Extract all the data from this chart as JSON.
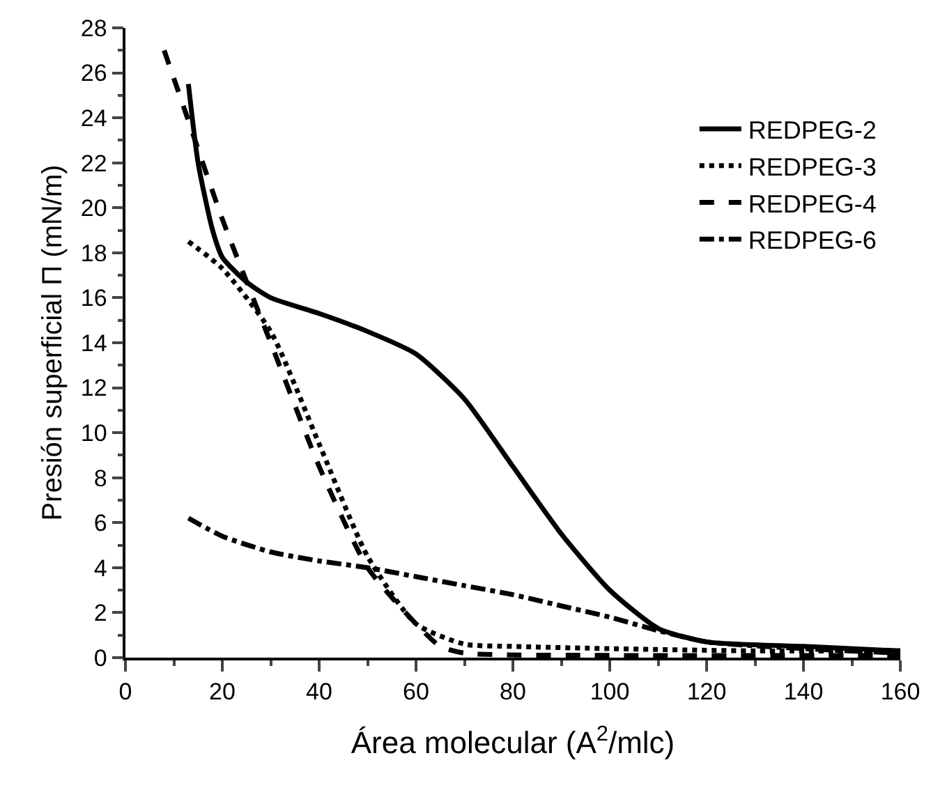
{
  "chart_data": {
    "type": "line",
    "xlabel": "Área molecular (A$^{2}$/mlc)",
    "ylabel": "Presión superficial Π (mN/m)",
    "xlim": [
      0,
      160
    ],
    "xticks": [
      0,
      20,
      40,
      60,
      80,
      100,
      120,
      140,
      160
    ],
    "ylim": [
      0,
      28
    ],
    "yticks": [
      0,
      2,
      4,
      6,
      8,
      10,
      12,
      14,
      16,
      18,
      20,
      22,
      24,
      26,
      28
    ],
    "grid": false,
    "legend": "top right",
    "marker": "none",
    "series": [
      {
        "name": "REDPEG-2",
        "color": "#000000",
        "line_style": "solid",
        "x": [
          13,
          15,
          18,
          20,
          25,
          30,
          40,
          50,
          60,
          70,
          80,
          90,
          100,
          110,
          120,
          140,
          160
        ],
        "values": [
          25.5,
          22,
          19,
          17.8,
          16.7,
          16,
          15.3,
          14.5,
          13.5,
          11.5,
          8.5,
          5.5,
          3,
          1.3,
          0.7,
          0.5,
          0.3
        ]
      },
      {
        "name": "REDPEG-3",
        "color": "#000000",
        "line_style": "dotted",
        "x": [
          13,
          20,
          30,
          40,
          50,
          60,
          70,
          80,
          100,
          130,
          160
        ],
        "values": [
          18.5,
          17.3,
          14.5,
          9.5,
          4.5,
          1.5,
          0.6,
          0.5,
          0.4,
          0.3,
          0.3
        ]
      },
      {
        "name": "REDPEG-4",
        "color": "#000000",
        "line_style": "dashed",
        "x": [
          8,
          12,
          20,
          30,
          40,
          50,
          60,
          65,
          70,
          100,
          160
        ],
        "values": [
          27,
          24.5,
          19.5,
          14,
          8.5,
          4,
          1.5,
          0.5,
          0.2,
          0.1,
          0.1
        ]
      },
      {
        "name": "REDPEG-6",
        "color": "#000000",
        "line_style": "dashdot",
        "x": [
          13,
          20,
          30,
          40,
          50,
          60,
          70,
          80,
          90,
          100,
          110,
          120,
          140,
          160
        ],
        "values": [
          6.2,
          5.4,
          4.7,
          4.3,
          4,
          3.6,
          3.2,
          2.8,
          2.3,
          1.8,
          1.2,
          0.7,
          0.4,
          0.2
        ]
      }
    ]
  }
}
